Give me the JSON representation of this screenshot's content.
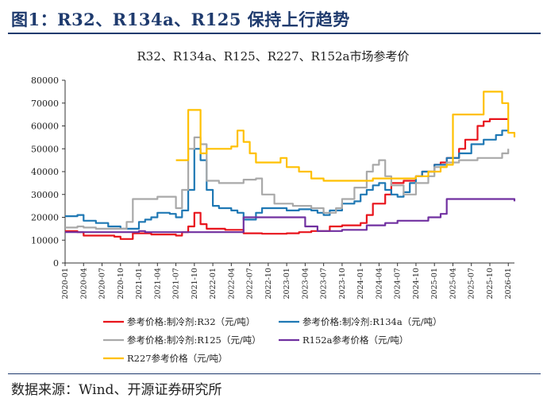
{
  "page": {
    "title": "图1：R32、R134a、R125 保持上行趋势",
    "source": "数据来源：Wind、开源证券研究所"
  },
  "colors": {
    "header": "#1f3b6e",
    "axis": "#333333",
    "R32": "#e8141c",
    "R134a": "#1f78b4",
    "R125": "#a9a9a9",
    "R152a": "#7030a0",
    "R227": "#ffc000"
  },
  "chart_data": {
    "type": "line",
    "title": "R32、R134a、R125、R227、R152a市场参考价",
    "xlabel": "",
    "ylabel": "",
    "ylim": [
      0,
      80000
    ],
    "yticks": [
      0,
      10000,
      20000,
      30000,
      40000,
      50000,
      60000,
      70000,
      80000
    ],
    "ytick_labels": [
      "0",
      "10000",
      "20000",
      "30000",
      "40000",
      "50000",
      "60000",
      "70000",
      "80000"
    ],
    "xlim": [
      "2020-01",
      "2026-02"
    ],
    "xticks": [
      "2020-01",
      "2020-04",
      "2020-07",
      "2020-10",
      "2021-01",
      "2021-04",
      "2021-07",
      "2021-10",
      "2022-01",
      "2022-04",
      "2022-07",
      "2022-10",
      "2023-01",
      "2023-04",
      "2023-07",
      "2023-10",
      "2024-01",
      "2024-04",
      "2024-07",
      "2024-10",
      "2025-01",
      "2025-04",
      "2025-07",
      "2025-10",
      "2026-01"
    ],
    "grid": false,
    "legend_position": "bottom",
    "series": [
      {
        "name": "参考价格:制冷剂:R32（元/吨）",
        "color": "#e8141c",
        "points": [
          [
            "2020-01",
            14000
          ],
          [
            "2020-03",
            13500
          ],
          [
            "2020-04",
            12000
          ],
          [
            "2020-09",
            11500
          ],
          [
            "2020-10",
            10500
          ],
          [
            "2020-11",
            10500
          ],
          [
            "2020-12",
            13000
          ],
          [
            "2021-02",
            13000
          ],
          [
            "2021-03",
            12500
          ],
          [
            "2021-07",
            12000
          ],
          [
            "2021-08",
            13500
          ],
          [
            "2021-09",
            16000
          ],
          [
            "2021-10",
            22000
          ],
          [
            "2021-11",
            17000
          ],
          [
            "2021-12",
            15000
          ],
          [
            "2022-03",
            14500
          ],
          [
            "2022-06",
            13000
          ],
          [
            "2022-09",
            12800
          ],
          [
            "2023-01",
            13000
          ],
          [
            "2023-03",
            13500
          ],
          [
            "2023-05",
            14000
          ],
          [
            "2023-07",
            14000
          ],
          [
            "2023-08",
            16000
          ],
          [
            "2023-10",
            16500
          ],
          [
            "2024-01",
            17500
          ],
          [
            "2024-02",
            21000
          ],
          [
            "2024-03",
            26000
          ],
          [
            "2024-05",
            30000
          ],
          [
            "2024-06",
            35000
          ],
          [
            "2024-08",
            36000
          ],
          [
            "2024-10",
            38000
          ],
          [
            "2024-11",
            40000
          ],
          [
            "2025-01",
            43000
          ],
          [
            "2025-02",
            44000
          ],
          [
            "2025-03",
            46000
          ],
          [
            "2025-05",
            50000
          ],
          [
            "2025-06",
            54000
          ],
          [
            "2025-08",
            60000
          ],
          [
            "2025-09",
            62000
          ],
          [
            "2025-10",
            63000
          ],
          [
            "2026-01",
            63000
          ]
        ]
      },
      {
        "name": "参考价格:制冷剂:R134a（元/吨）",
        "color": "#1f78b4",
        "points": [
          [
            "2020-01",
            20500
          ],
          [
            "2020-03",
            21000
          ],
          [
            "2020-04",
            18500
          ],
          [
            "2020-06",
            17500
          ],
          [
            "2020-08",
            16000
          ],
          [
            "2020-10",
            15000
          ],
          [
            "2020-12",
            15000
          ],
          [
            "2021-01",
            18000
          ],
          [
            "2021-02",
            19000
          ],
          [
            "2021-03",
            20000
          ],
          [
            "2021-04",
            22000
          ],
          [
            "2021-06",
            21500
          ],
          [
            "2021-07",
            20000
          ],
          [
            "2021-08",
            23000
          ],
          [
            "2021-09",
            32000
          ],
          [
            "2021-10",
            50000
          ],
          [
            "2021-11",
            45000
          ],
          [
            "2021-12",
            32000
          ],
          [
            "2022-01",
            25000
          ],
          [
            "2022-02",
            24000
          ],
          [
            "2022-04",
            23000
          ],
          [
            "2022-05",
            22000
          ],
          [
            "2022-06",
            19000
          ],
          [
            "2022-08",
            22000
          ],
          [
            "2022-09",
            24000
          ],
          [
            "2022-11",
            24000
          ],
          [
            "2023-01",
            23000
          ],
          [
            "2023-03",
            23500
          ],
          [
            "2023-05",
            23000
          ],
          [
            "2023-06",
            22000
          ],
          [
            "2023-07",
            21000
          ],
          [
            "2023-08",
            23000
          ],
          [
            "2023-10",
            26000
          ],
          [
            "2023-12",
            27000
          ],
          [
            "2024-01",
            30000
          ],
          [
            "2024-02",
            32000
          ],
          [
            "2024-03",
            34000
          ],
          [
            "2024-04",
            35000
          ],
          [
            "2024-05",
            32000
          ],
          [
            "2024-06",
            30000
          ],
          [
            "2024-07",
            29000
          ],
          [
            "2024-08",
            31000
          ],
          [
            "2024-09",
            35000
          ],
          [
            "2024-10",
            38000
          ],
          [
            "2024-11",
            40000
          ],
          [
            "2025-01",
            43000
          ],
          [
            "2025-03",
            46000
          ],
          [
            "2025-05",
            48000
          ],
          [
            "2025-07",
            52000
          ],
          [
            "2025-09",
            54000
          ],
          [
            "2025-11",
            56000
          ],
          [
            "2025-12",
            58000
          ],
          [
            "2026-01",
            58000
          ]
        ]
      },
      {
        "name": "参考价格:制冷剂:R125（元/吨）",
        "color": "#a9a9a9",
        "points": [
          [
            "2020-01",
            15500
          ],
          [
            "2020-03",
            16000
          ],
          [
            "2020-04",
            15500
          ],
          [
            "2020-06",
            15000
          ],
          [
            "2020-08",
            15000
          ],
          [
            "2020-10",
            15000
          ],
          [
            "2020-11",
            18000
          ],
          [
            "2020-12",
            28000
          ],
          [
            "2021-02",
            28000
          ],
          [
            "2021-04",
            29000
          ],
          [
            "2021-06",
            29000
          ],
          [
            "2021-07",
            24000
          ],
          [
            "2021-08",
            32000
          ],
          [
            "2021-09",
            50000
          ],
          [
            "2021-10",
            55000
          ],
          [
            "2021-11",
            52000
          ],
          [
            "2021-12",
            36000
          ],
          [
            "2022-02",
            35000
          ],
          [
            "2022-05",
            35000
          ],
          [
            "2022-06",
            36500
          ],
          [
            "2022-08",
            37000
          ],
          [
            "2022-09",
            30000
          ],
          [
            "2022-11",
            26000
          ],
          [
            "2023-02",
            25000
          ],
          [
            "2023-05",
            24000
          ],
          [
            "2023-07",
            22000
          ],
          [
            "2023-09",
            24000
          ],
          [
            "2023-10",
            28000
          ],
          [
            "2023-12",
            33000
          ],
          [
            "2024-02",
            40000
          ],
          [
            "2024-03",
            43000
          ],
          [
            "2024-04",
            45000
          ],
          [
            "2024-05",
            38000
          ],
          [
            "2024-06",
            34000
          ],
          [
            "2024-08",
            30000
          ],
          [
            "2024-09",
            30000
          ],
          [
            "2024-10",
            35000
          ],
          [
            "2024-12",
            38000
          ],
          [
            "2025-01",
            42000
          ],
          [
            "2025-03",
            44000
          ],
          [
            "2025-05",
            45000
          ],
          [
            "2025-08",
            46000
          ],
          [
            "2025-11",
            46000
          ],
          [
            "2025-12",
            48000
          ],
          [
            "2026-01",
            50000
          ]
        ]
      },
      {
        "name": "R152a参考价格（元/吨）",
        "color": "#7030a0",
        "points": [
          [
            "2020-01",
            13500
          ],
          [
            "2021-01",
            14000
          ],
          [
            "2021-02",
            13500
          ],
          [
            "2022-05",
            13500
          ],
          [
            "2022-06",
            20000
          ],
          [
            "2023-03",
            20000
          ],
          [
            "2023-04",
            16000
          ],
          [
            "2023-06",
            14000
          ],
          [
            "2023-10",
            14500
          ],
          [
            "2024-01",
            14500
          ],
          [
            "2024-02",
            16500
          ],
          [
            "2024-05",
            17500
          ],
          [
            "2024-07",
            18500
          ],
          [
            "2024-11",
            18500
          ],
          [
            "2024-12",
            20000
          ],
          [
            "2025-02",
            21500
          ],
          [
            "2025-03",
            28000
          ],
          [
            "2026-01",
            28000
          ],
          [
            "2026-02",
            27000
          ]
        ]
      },
      {
        "name": "R227参考价格（元/吨）",
        "color": "#ffc000",
        "points": [
          [
            "2021-07",
            45000
          ],
          [
            "2021-08",
            45000
          ],
          [
            "2021-09",
            67000
          ],
          [
            "2021-10",
            67000
          ],
          [
            "2021-11",
            48000
          ],
          [
            "2021-12",
            50000
          ],
          [
            "2022-03",
            50000
          ],
          [
            "2022-04",
            51000
          ],
          [
            "2022-05",
            58000
          ],
          [
            "2022-06",
            53000
          ],
          [
            "2022-07",
            48000
          ],
          [
            "2022-08",
            44000
          ],
          [
            "2022-10",
            44000
          ],
          [
            "2022-12",
            46000
          ],
          [
            "2023-01",
            42000
          ],
          [
            "2023-03",
            40000
          ],
          [
            "2023-05",
            37000
          ],
          [
            "2023-07",
            36000
          ],
          [
            "2023-10",
            36000
          ],
          [
            "2024-01",
            36000
          ],
          [
            "2024-03",
            37000
          ],
          [
            "2024-07",
            37000
          ],
          [
            "2024-10",
            38000
          ],
          [
            "2024-12",
            40000
          ],
          [
            "2025-02",
            42000
          ],
          [
            "2025-03",
            43000
          ],
          [
            "2025-04",
            65000
          ],
          [
            "2025-08",
            65000
          ],
          [
            "2025-09",
            75000
          ],
          [
            "2025-11",
            75000
          ],
          [
            "2025-12",
            70000
          ],
          [
            "2026-01",
            57000
          ],
          [
            "2026-02",
            55000
          ]
        ]
      }
    ]
  }
}
